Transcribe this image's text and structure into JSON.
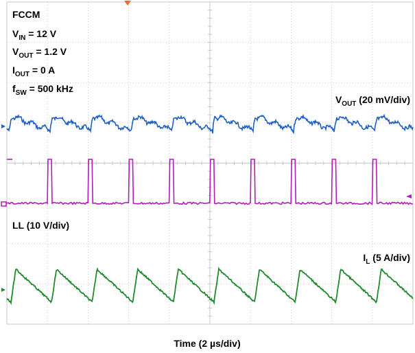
{
  "chart_data": {
    "type": "line",
    "title": "",
    "conditions": {
      "mode": "FCCM",
      "vin": {
        "main": "V",
        "sub": "IN",
        "rest": " = 12 V"
      },
      "vout": {
        "main": "V",
        "sub": "OUT",
        "rest": " = 1.2 V"
      },
      "iout": {
        "main": "I",
        "sub": "OUT",
        "rest": " = 0 A"
      },
      "fsw": {
        "main": "f",
        "sub": "SW",
        "rest": " = 500 kHz"
      }
    },
    "xlabel": "Time (2 µs/div)",
    "grid": true,
    "divisions": {
      "x": 10,
      "y": 8
    },
    "switching_period_us": 2,
    "pulses_visible": 10,
    "series": [
      {
        "key": "vout",
        "name_main": "V",
        "name_sub": "OUT",
        "name_rest": " (20 mV/div)",
        "color": "#1f5fc4",
        "shape": "sawtooth ripple"
      },
      {
        "key": "ll",
        "name": "LL (10 V/div)",
        "color": "#b21bb8",
        "shape": "switch-node pulse train",
        "pulse_amplitude_v": 12
      },
      {
        "key": "il",
        "name_main": "I",
        "name_sub": "L",
        "name_rest": " (5 A/div)",
        "color": "#1e8a2c",
        "shape": "triangular ripple"
      }
    ],
    "colors": {
      "grid": "#c9c9c9",
      "trigger_marker": "#e8702a"
    }
  }
}
